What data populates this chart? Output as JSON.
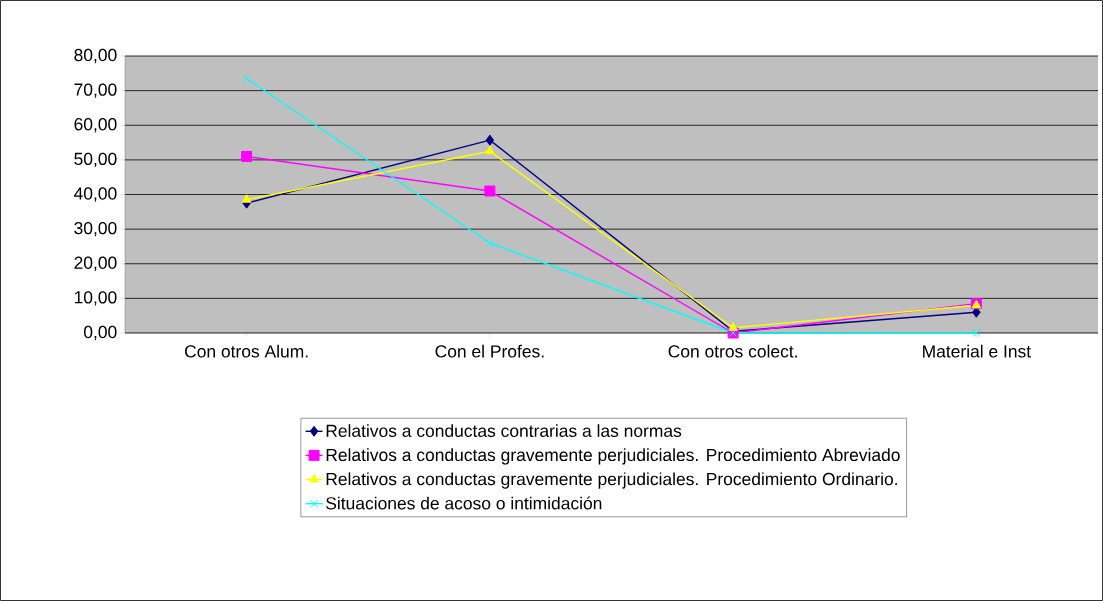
{
  "chart_data": {
    "type": "line",
    "categories": [
      "Con otros Alum.",
      "Con el Profes.",
      "Con otros colect.",
      "Material e Inst"
    ],
    "series": [
      {
        "name": "Relativos a conductas contrarias a las normas",
        "color": "#000080",
        "marker": "diamond",
        "values": [
          37.5,
          55.7,
          0.5,
          6
        ]
      },
      {
        "name": "Relativos a conductas gravemente perjudiciales. Procedimiento Abreviado",
        "color": "#ff00ff",
        "marker": "square",
        "values": [
          51,
          41,
          0,
          8.5
        ]
      },
      {
        "name": "Relativos a conductas gravemente perjudiciales. Procedimiento Ordinario.",
        "color": "#ffff00",
        "marker": "triangle",
        "values": [
          38.5,
          52.5,
          1.5,
          8
        ]
      },
      {
        "name": "Situaciones de acoso o intimidación",
        "color": "#00ffff",
        "marker": "cross",
        "values": [
          73.5,
          26,
          0,
          0
        ]
      }
    ],
    "ylim": [
      0,
      80
    ],
    "yticks": [
      {
        "value": 0,
        "label": "0,00"
      },
      {
        "value": 10,
        "label": "10,00"
      },
      {
        "value": 20,
        "label": "20,00"
      },
      {
        "value": 30,
        "label": "30,00"
      },
      {
        "value": 40,
        "label": "40,00"
      },
      {
        "value": 50,
        "label": "50,00"
      },
      {
        "value": 60,
        "label": "60,00"
      },
      {
        "value": 70,
        "label": "70,00"
      },
      {
        "value": 80,
        "label": "80,00"
      }
    ],
    "grid": "y",
    "legend": "bottom"
  }
}
